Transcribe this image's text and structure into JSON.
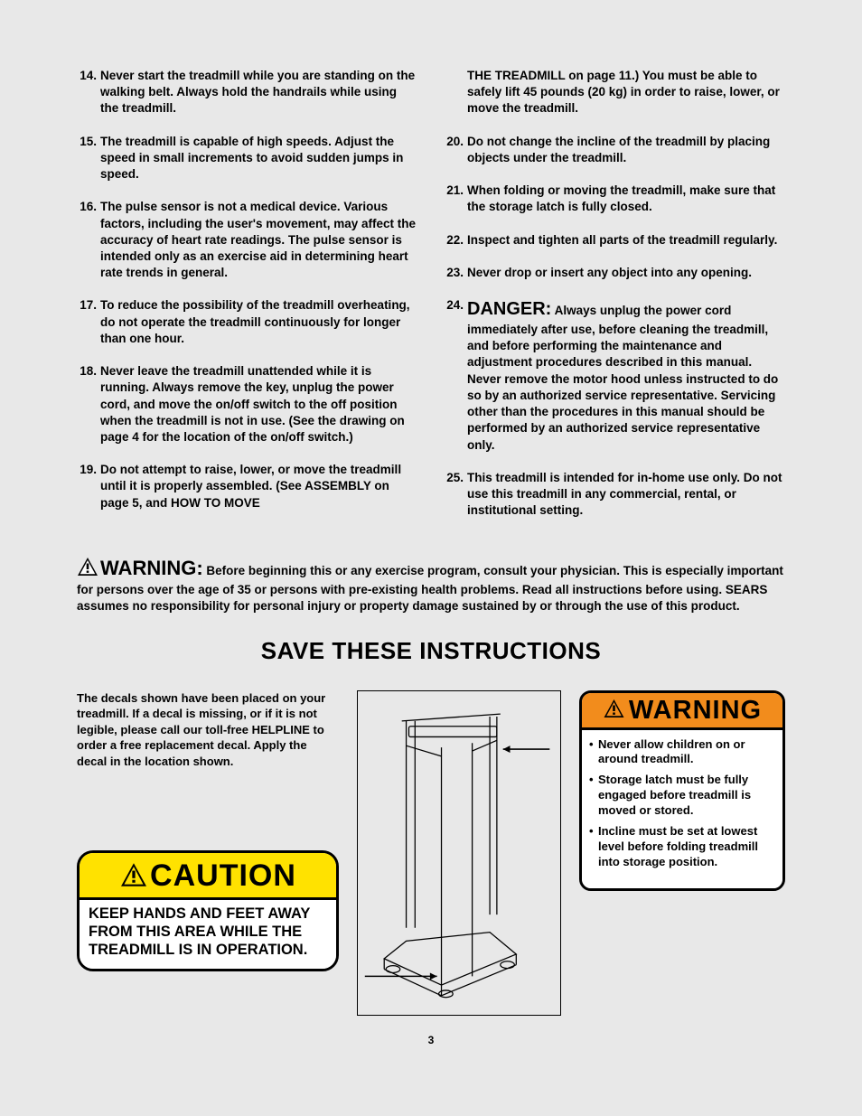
{
  "left_items": [
    {
      "n": "14.",
      "t": "Never start the treadmill while you are standing on the walking belt. Always hold the handrails while using the treadmill."
    },
    {
      "n": "15.",
      "t": "The treadmill is capable of high speeds. Adjust the speed in small increments to avoid sudden jumps in speed."
    },
    {
      "n": "16.",
      "t": "The pulse sensor is not a medical device. Various factors, including the user's movement, may affect the accuracy of heart rate readings. The pulse sensor is intended only as an exercise aid in determining heart rate trends in general."
    },
    {
      "n": "17.",
      "t": "To reduce the possibility of the treadmill overheating, do not operate the treadmill continuously for longer than one hour."
    },
    {
      "n": "18.",
      "t": "Never leave the treadmill unattended while it is running. Always remove the key, unplug the power cord, and move the on/off switch to the off position when the treadmill is not in use. (See the drawing on page 4 for the location of the on/off switch.)"
    },
    {
      "n": "19.",
      "t": "Do not attempt to raise, lower, or move the treadmill until it is properly assembled. (See ASSEMBLY on page 5, and HOW TO MOVE"
    }
  ],
  "right_first": {
    "t": "THE TREADMILL on page 11.) You must be able to safely lift 45 pounds (20 kg) in order to raise, lower, or move the treadmill."
  },
  "right_items": [
    {
      "n": "20.",
      "t": "Do not change the incline of the treadmill by placing objects under the treadmill."
    },
    {
      "n": "21.",
      "t": "When folding or moving the treadmill, make sure that the storage latch is fully closed."
    },
    {
      "n": "22.",
      "t": "Inspect and tighten all parts of the treadmill regularly."
    },
    {
      "n": "23.",
      "t": "Never drop or insert any object into any opening."
    }
  ],
  "danger_item": {
    "n": "24.",
    "lead": "DANGER:",
    "t": " Always unplug the power cord immediately after use, before cleaning the treadmill, and before performing the maintenance and adjustment procedures described in this manual. Never remove the motor hood unless instructed to do so by an authorized service representative. Servicing other than the procedures in this manual should be performed by an authorized service representative only."
  },
  "right_after": [
    {
      "n": "25.",
      "t": "This treadmill is intended for in-home use only. Do not use this treadmill in any commercial, rental, or institutional setting."
    }
  ],
  "warning_lead": "WARNING:",
  "warning_para": " Before beginning this or any exercise program, consult your physician. This is especially important for persons over the age of 35 or persons with pre-existing health problems. Read all instructions before using. SEARS assumes no responsibility for personal injury or property damage sustained by or through the use of this product.",
  "save_title": "SAVE THESE INSTRUCTIONS",
  "decal_text": "The decals shown have been placed on your treadmill. If a decal is missing, or if it is not legible, please call our toll-free HELPLINE to order a free replacement decal. Apply the decal in the location shown.",
  "caution_word": "CAUTION",
  "caution_body": "KEEP HANDS AND FEET AWAY FROM THIS AREA WHILE THE TREADMILL IS IN OPERATION.",
  "warn_word": "WARNING",
  "warn_bullets": [
    "Never allow children on or around treadmill.",
    "Storage latch must be fully engaged before treadmill is moved or stored.",
    "Incline must be set at lowest level before folding treadmill into storage position."
  ],
  "page_number": "3",
  "colors": {
    "caution_bg": "#ffe200",
    "warning_bg": "#f28c1c",
    "page_bg": "#e8e8e8"
  }
}
